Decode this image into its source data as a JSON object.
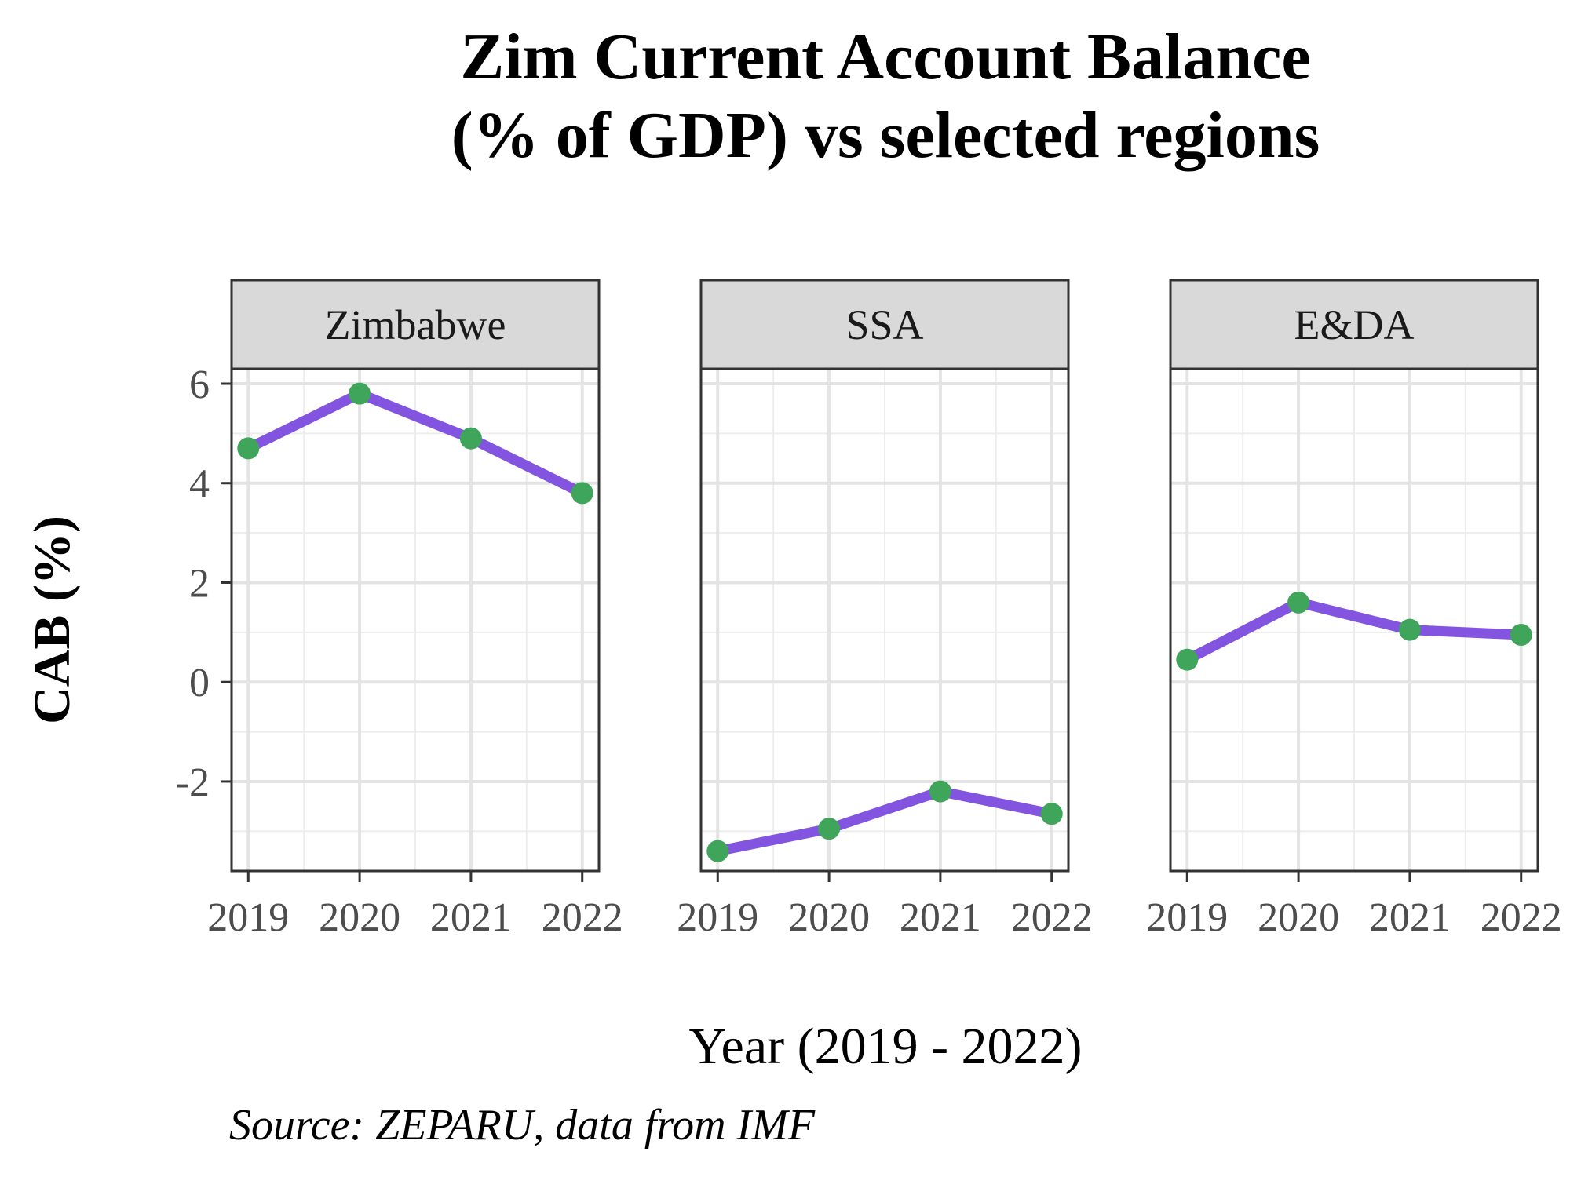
{
  "chart_data": {
    "type": "line",
    "title_lines": [
      "Zim Current Account Balance",
      "(% of GDP) vs selected regions"
    ],
    "xlabel": "Year (2019 - 2022)",
    "ylabel": "CAB (%)",
    "caption": "Source: ZEPARU, data from IMF",
    "x": [
      2019,
      2020,
      2021,
      2022
    ],
    "x_tick_labels": [
      "2019",
      "2020",
      "2021",
      "2022"
    ],
    "y_ticks": [
      -2,
      0,
      2,
      4,
      6
    ],
    "y_tick_labels": [
      "-2",
      "0",
      "2",
      "4",
      "6"
    ],
    "ylim": [
      -3.8,
      6.3
    ],
    "grid": true,
    "line_color": "#8254E0",
    "point_color": "#3FA55B",
    "facets": [
      {
        "label": "Zimbabwe",
        "values": [
          4.7,
          5.8,
          4.9,
          3.8
        ]
      },
      {
        "label": "SSA",
        "values": [
          -3.4,
          -2.95,
          -2.2,
          -2.65
        ]
      },
      {
        "label": "E&DA",
        "values": [
          0.45,
          1.6,
          1.05,
          0.95
        ]
      }
    ]
  }
}
